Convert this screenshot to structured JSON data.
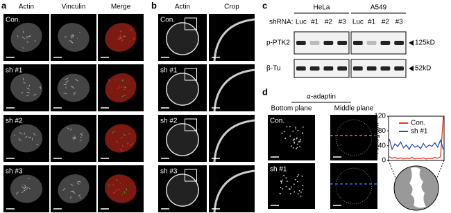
{
  "panel_a": {
    "label": "a",
    "columns": [
      "Actin",
      "Vinculin",
      "Merge"
    ],
    "rows": [
      "Con.",
      "sh #1",
      "sh #2",
      "sh #3"
    ]
  },
  "panel_b": {
    "label": "b",
    "columns": [
      "Actin",
      "Crop"
    ],
    "rows": [
      "Con.",
      "sh #1",
      "sh #2",
      "sh #3"
    ]
  },
  "panel_c": {
    "label": "c",
    "shrna_label": "shRNA:",
    "groups": [
      {
        "name": "HeLa",
        "lanes": [
          "Luc",
          "#1",
          "#2",
          "#3"
        ]
      },
      {
        "name": "A549",
        "lanes": [
          "Luc",
          "#1",
          "#2",
          "#3"
        ]
      }
    ],
    "blots": [
      {
        "name": "p-PTK2",
        "size": "125kD"
      },
      {
        "name": "β-Tu",
        "size": "52kD"
      }
    ]
  },
  "panel_d": {
    "label": "d",
    "title": "α-adaptin",
    "columns": [
      "Bottom plane",
      "Middle plane"
    ],
    "rows": [
      "Con.",
      "sh #1"
    ]
  },
  "chart_data": {
    "type": "line",
    "y_label": "Histogram",
    "ylim": [
      0,
      120
    ],
    "yticks": [
      0,
      40,
      80,
      120
    ],
    "series": [
      {
        "name": "Con.",
        "color": "#e8341c",
        "values": [
          10,
          6,
          8,
          5,
          7,
          4,
          6,
          5,
          8,
          4,
          6,
          5,
          7,
          4,
          6,
          5,
          8,
          6,
          10,
          120
        ]
      },
      {
        "name": "sh #1",
        "color": "#2c4fa8",
        "values": [
          58,
          30,
          45,
          38,
          50,
          34,
          42,
          30,
          44,
          36,
          40,
          32,
          46,
          35,
          42,
          38,
          48,
          36,
          55,
          30
        ]
      }
    ]
  }
}
